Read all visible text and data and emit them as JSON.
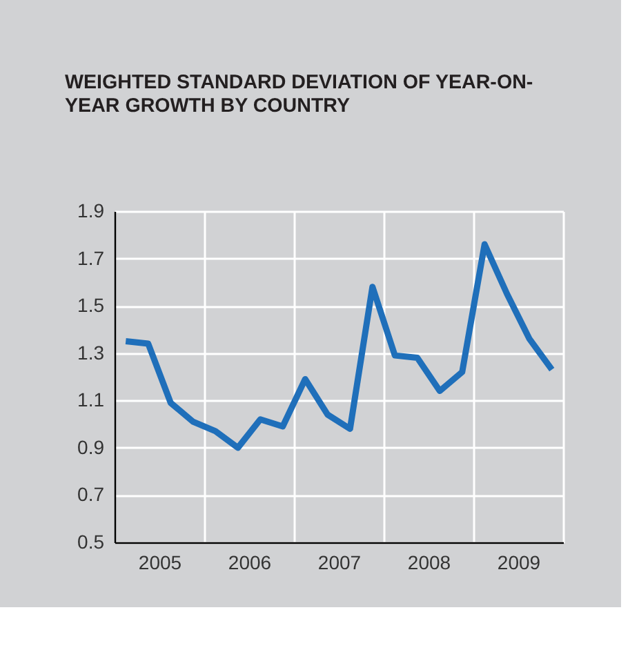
{
  "chart_data": {
    "type": "line",
    "title": "WEIGHTED STANDARD DEVIATION OF YEAR-ON-YEAR GROWTH BY COUNTRY",
    "x": [
      2005.125,
      2005.375,
      2005.625,
      2005.875,
      2006.125,
      2006.375,
      2006.625,
      2006.875,
      2007.125,
      2007.375,
      2007.625,
      2007.875,
      2008.125,
      2008.375,
      2008.625,
      2008.875,
      2009.125,
      2009.375,
      2009.625,
      2009.875
    ],
    "series": [
      {
        "color": "#1f6fba",
        "values": [
          1.35,
          1.34,
          1.09,
          1.01,
          0.97,
          0.9,
          1.02,
          0.99,
          1.19,
          1.04,
          0.98,
          1.58,
          1.29,
          1.28,
          1.14,
          1.22,
          1.76,
          1.55,
          1.36,
          1.23
        ]
      }
    ],
    "xlim": [
      2005,
      2010
    ],
    "xticks": [
      {
        "value": 2005.5,
        "label": "2005"
      },
      {
        "value": 2006,
        "label": null
      },
      {
        "value": 2006.5,
        "label": "2006"
      },
      {
        "value": 2007,
        "label": null
      },
      {
        "value": 2007.5,
        "label": "2007"
      },
      {
        "value": 2008,
        "label": null
      },
      {
        "value": 2008.5,
        "label": "2008"
      },
      {
        "value": 2009,
        "label": null
      },
      {
        "value": 2009.5,
        "label": "2009"
      },
      {
        "value": 2010,
        "label": null
      }
    ],
    "ylim": [
      0.5,
      1.9
    ],
    "yticks": [
      {
        "value": 0.5,
        "label": "0.5"
      },
      {
        "value": 0.7,
        "label": "0.7"
      },
      {
        "value": 0.9,
        "label": "0.9"
      },
      {
        "value": 1.1,
        "label": "1.1"
      },
      {
        "value": 1.3,
        "label": "1.3"
      },
      {
        "value": 1.5,
        "label": "1.5"
      },
      {
        "value": 1.7,
        "label": "1.7"
      },
      {
        "value": 1.9,
        "label": "1.9"
      }
    ],
    "grid": true,
    "marker": "none",
    "line_style": "solid"
  }
}
